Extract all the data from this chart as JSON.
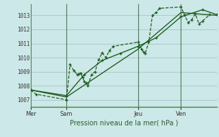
{
  "title": "Pression niveau de la mer( hPa )",
  "bg_color": "#cce8e8",
  "grid_color": "#9bbfbf",
  "line_color": "#1e5c1e",
  "ylim": [
    1006.5,
    1013.8
  ],
  "yticks": [
    1007,
    1008,
    1009,
    1010,
    1011,
    1012,
    1013
  ],
  "day_labels": [
    "Mer",
    "Sam",
    "Jeu",
    "Ven"
  ],
  "day_positions": [
    0,
    10,
    30,
    42
  ],
  "xmax": 52,
  "series1_x": [
    0,
    1.5,
    10,
    11,
    12,
    13,
    13.5,
    14,
    14.5,
    15,
    15.5,
    16,
    17,
    18,
    19,
    20,
    21,
    22,
    23,
    30,
    31,
    31.5,
    32,
    33,
    34,
    35,
    36,
    42,
    43,
    44,
    45,
    46,
    47,
    48,
    50
  ],
  "series1_y": [
    1007.7,
    1007.4,
    1007.0,
    1009.5,
    1009.1,
    1008.8,
    1008.85,
    1008.9,
    1008.6,
    1008.3,
    1008.2,
    1008.0,
    1008.8,
    1009.0,
    1009.85,
    1010.35,
    1010.0,
    1010.5,
    1010.8,
    1011.1,
    1010.6,
    1010.4,
    1010.3,
    1011.1,
    1013.0,
    1013.2,
    1013.5,
    1013.6,
    1013.0,
    1012.5,
    1012.7,
    1013.1,
    1012.4,
    1012.6,
    1013.05
  ],
  "series2_x": [
    0,
    10,
    30,
    42,
    52
  ],
  "series2_y": [
    1007.7,
    1007.2,
    1010.6,
    1013.2,
    1013.0
  ],
  "series3_x": [
    0,
    10,
    15,
    20,
    25,
    30,
    35,
    42,
    48,
    52
  ],
  "series3_y": [
    1007.7,
    1007.3,
    1008.8,
    1009.8,
    1010.3,
    1010.8,
    1011.4,
    1012.9,
    1013.4,
    1013.05
  ]
}
